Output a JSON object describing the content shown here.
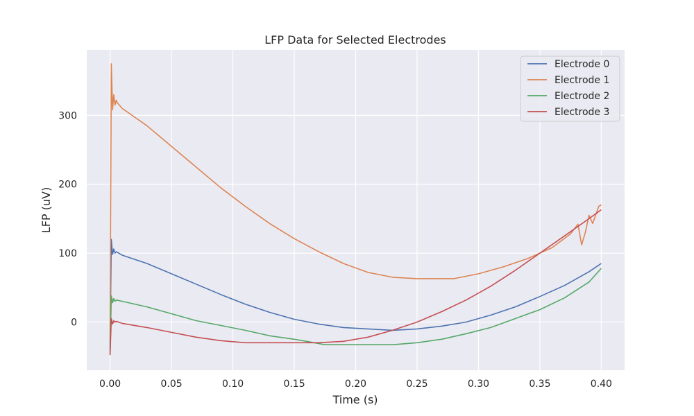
{
  "chart_data": {
    "type": "line",
    "title": "LFP Data for Selected Electrodes",
    "xlabel": "Time (s)",
    "ylabel": "LFP (uV)",
    "xlim": [
      -0.019,
      0.419
    ],
    "ylim": [
      -70,
      395
    ],
    "x_ticks": [
      0.0,
      0.05,
      0.1,
      0.15,
      0.2,
      0.25,
      0.3,
      0.35,
      0.4
    ],
    "x_tick_labels": [
      "0.00",
      "0.05",
      "0.10",
      "0.15",
      "0.20",
      "0.25",
      "0.30",
      "0.35",
      "0.40"
    ],
    "y_ticks": [
      0,
      100,
      200,
      300
    ],
    "y_tick_labels": [
      "0",
      "100",
      "200",
      "300"
    ],
    "grid": true,
    "legend_position": "top-right",
    "series": [
      {
        "name": "Electrode 0",
        "color": "#4c72b0",
        "x": [
          0.0,
          0.001,
          0.002,
          0.003,
          0.004,
          0.005,
          0.01,
          0.03,
          0.05,
          0.07,
          0.09,
          0.11,
          0.13,
          0.15,
          0.17,
          0.19,
          0.21,
          0.23,
          0.25,
          0.27,
          0.29,
          0.31,
          0.33,
          0.35,
          0.37,
          0.39,
          0.4
        ],
        "values": [
          -40,
          120,
          98,
          106,
          100,
          102,
          97,
          85,
          70,
          55,
          40,
          26,
          14,
          4,
          -3,
          -8,
          -10,
          -12,
          -10,
          -6,
          0,
          10,
          22,
          37,
          53,
          73,
          85
        ]
      },
      {
        "name": "Electrode 1",
        "color": "#dd8452",
        "x": [
          0.0,
          0.001,
          0.002,
          0.003,
          0.004,
          0.005,
          0.006,
          0.01,
          0.03,
          0.05,
          0.07,
          0.09,
          0.11,
          0.13,
          0.15,
          0.17,
          0.19,
          0.21,
          0.23,
          0.25,
          0.27,
          0.28,
          0.3,
          0.32,
          0.34,
          0.36,
          0.375,
          0.381,
          0.384,
          0.387,
          0.39,
          0.393,
          0.396,
          0.398,
          0.4
        ],
        "values": [
          -30,
          375,
          308,
          330,
          315,
          322,
          318,
          310,
          285,
          255,
          225,
          195,
          168,
          143,
          121,
          102,
          85,
          72,
          65,
          63,
          63,
          63,
          70,
          80,
          92,
          108,
          128,
          142,
          112,
          130,
          155,
          143,
          158,
          168,
          170
        ]
      },
      {
        "name": "Electrode 2",
        "color": "#55a868",
        "x": [
          0.0,
          0.001,
          0.002,
          0.003,
          0.004,
          0.005,
          0.01,
          0.03,
          0.05,
          0.07,
          0.09,
          0.11,
          0.13,
          0.15,
          0.16,
          0.175,
          0.2,
          0.23,
          0.25,
          0.27,
          0.29,
          0.31,
          0.33,
          0.35,
          0.37,
          0.39,
          0.4
        ],
        "values": [
          -45,
          38,
          28,
          34,
          30,
          32,
          30,
          22,
          12,
          2,
          -5,
          -12,
          -20,
          -25,
          -28,
          -33,
          -33,
          -33,
          -30,
          -25,
          -17,
          -8,
          5,
          18,
          35,
          58,
          78
        ]
      },
      {
        "name": "Electrode 3",
        "color": "#c44e52",
        "x": [
          0.0,
          0.001,
          0.002,
          0.003,
          0.004,
          0.005,
          0.01,
          0.03,
          0.05,
          0.07,
          0.09,
          0.11,
          0.13,
          0.15,
          0.17,
          0.19,
          0.21,
          0.23,
          0.25,
          0.27,
          0.29,
          0.31,
          0.33,
          0.35,
          0.37,
          0.39,
          0.4
        ],
        "values": [
          -48,
          5,
          -3,
          2,
          0,
          1,
          -2,
          -8,
          -15,
          -22,
          -27,
          -30,
          -30,
          -30,
          -30,
          -28,
          -22,
          -12,
          0,
          15,
          32,
          52,
          75,
          100,
          125,
          150,
          163
        ]
      }
    ]
  }
}
